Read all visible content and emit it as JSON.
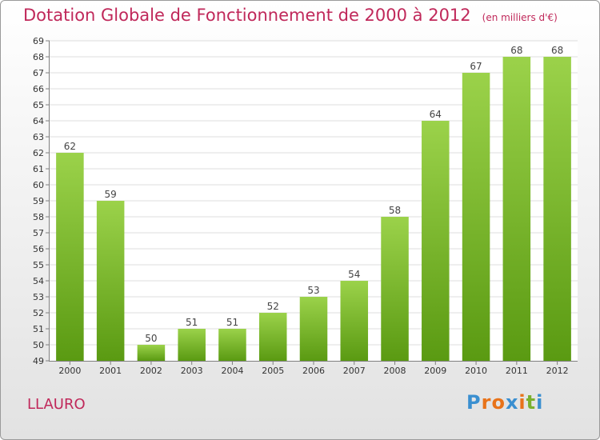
{
  "title": "Dotation Globale de Fonctionnement de 2000 à 2012",
  "unit_note": "(en milliers d'€)",
  "commune": "LLAURO",
  "brand": {
    "letters": [
      "P",
      "r",
      "o",
      "x",
      "i",
      "t",
      "i"
    ],
    "colors": [
      "#3a8fd0",
      "#e8731a",
      "#e8731a",
      "#3a8fd0",
      "#e8731a",
      "#7ab02e",
      "#3a8fd0"
    ]
  },
  "colors": {
    "bar_light": "#9bd24a",
    "bar_dark": "#5a9a12",
    "grid": "#dcdcdc",
    "title": "#c0285a"
  },
  "chart_data": {
    "type": "bar",
    "categories": [
      "2000",
      "2001",
      "2002",
      "2003",
      "2004",
      "2005",
      "2006",
      "2007",
      "2008",
      "2009",
      "2010",
      "2011",
      "2012"
    ],
    "values": [
      62,
      59,
      50,
      51,
      51,
      52,
      53,
      54,
      58,
      64,
      67,
      68,
      68
    ],
    "ylim": [
      49,
      69
    ],
    "yticks": [
      49,
      50,
      51,
      52,
      53,
      54,
      55,
      56,
      57,
      58,
      59,
      60,
      61,
      62,
      63,
      64,
      65,
      66,
      67,
      68,
      69
    ],
    "grid": true
  }
}
